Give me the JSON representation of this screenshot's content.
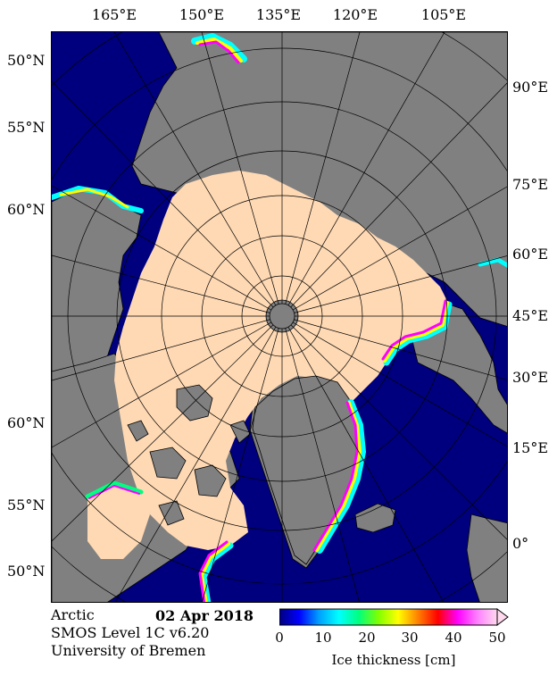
{
  "map": {
    "longitude_labels_top": [
      "165°E",
      "150°E",
      "135°E",
      "120°E",
      "105°E"
    ],
    "longitude_labels_right": [
      "90°E",
      "75°E",
      "60°E",
      "45°E",
      "30°E",
      "15°E",
      "0°"
    ],
    "latitude_labels_left": [
      "50°N",
      "55°N",
      "60°N",
      "60°N",
      "55°N",
      "50°N"
    ],
    "colors": {
      "ocean_open": "#00007f",
      "land": "#808080",
      "thick_ice": "#fed9b4",
      "coastline": "#000000",
      "graticule": "#000000"
    }
  },
  "caption": {
    "region": "Arctic",
    "date": "02 Apr 2018",
    "product": "SMOS Level 1C v6.20",
    "institution": "University of Bremen"
  },
  "colorbar": {
    "label": "Ice thickness [cm]",
    "ticks": [
      "0",
      "10",
      "20",
      "30",
      "40",
      "50"
    ],
    "min": 0,
    "max": 50,
    "extend": "max",
    "stops": [
      "#00007f",
      "#0000ff",
      "#00a0ff",
      "#00ffff",
      "#00ff80",
      "#80ff00",
      "#ffff00",
      "#ff8000",
      "#ff0000",
      "#ff00ff",
      "#ff80ff",
      "#ffd9ee"
    ]
  }
}
